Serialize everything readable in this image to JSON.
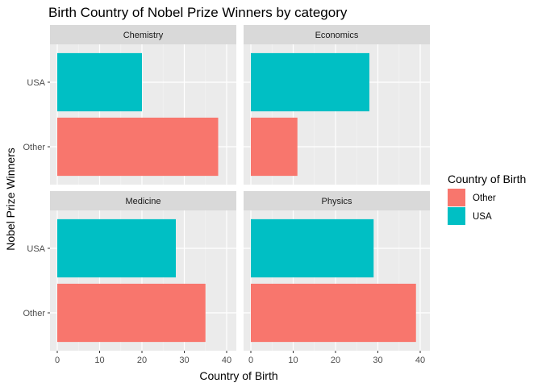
{
  "chart_data": {
    "type": "bar",
    "orientation": "horizontal",
    "faceted": true,
    "title": "Birth Country of Nobel Prize Winners by category",
    "xlabel": "Country of Birth",
    "ylabel": "Nobel Prize Winners",
    "xlim": [
      0,
      40
    ],
    "x_ticks": [
      "0",
      "10",
      "20",
      "30",
      "40"
    ],
    "categories": [
      "USA",
      "Other"
    ],
    "grid": true,
    "legend": {
      "title": "Country of Birth",
      "position": "right",
      "items": [
        {
          "label": "Other",
          "color": "#F8766D"
        },
        {
          "label": "USA",
          "color": "#00BFC4"
        }
      ]
    },
    "panels": [
      {
        "name": "Chemistry",
        "values": {
          "USA": 20,
          "Other": 38
        }
      },
      {
        "name": "Economics",
        "values": {
          "USA": 28,
          "Other": 11
        }
      },
      {
        "name": "Medicine",
        "values": {
          "USA": 28,
          "Other": 35
        }
      },
      {
        "name": "Physics",
        "values": {
          "USA": 29,
          "Other": 39
        }
      }
    ]
  },
  "colors": {
    "panel_background": "#EBEBEB",
    "strip_background": "#D9D9D9",
    "Other": "#F8766D",
    "USA": "#00BFC4"
  }
}
